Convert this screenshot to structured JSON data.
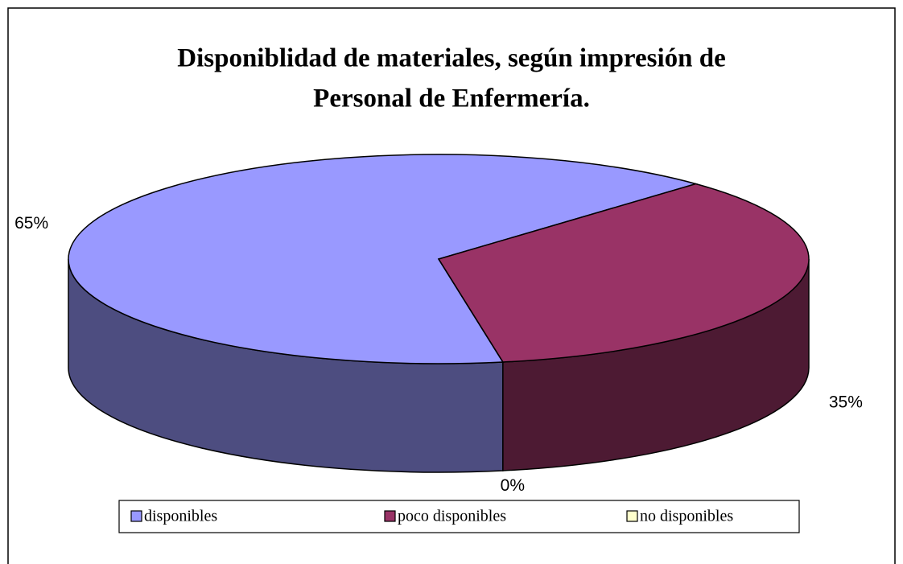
{
  "chart_data": {
    "type": "pie3d",
    "title": [
      "Disponiblidad de materiales, según impresión de",
      "Personal de Enfermería."
    ],
    "categories": [
      "disponibles",
      "poco disponibles",
      "no disponibles"
    ],
    "values": [
      65,
      35,
      0
    ],
    "value_labels": [
      "65%",
      "35%",
      "0%"
    ],
    "colors": [
      "#9999ff",
      "#993366",
      "#ffffcc"
    ],
    "legend": "bottom"
  }
}
